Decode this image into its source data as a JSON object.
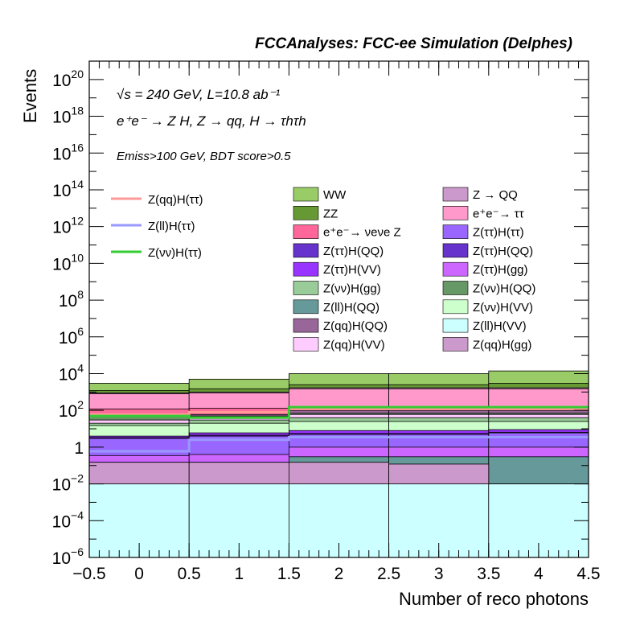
{
  "chart_data": {
    "type": "bar",
    "stacked": true,
    "title": "FCCAnalyses: FCC-ee Simulation (Delphes)",
    "annotations": {
      "energy_lumi": "√s = 240 GeV, L=10.8 ab⁻¹",
      "process": "e⁺e⁻ → Z H, Z → qq, H → τhτh",
      "cuts": "Emiss>100 GeV, BDT score>0.5"
    },
    "xlabel": "Number of reco photons",
    "ylabel": "Events",
    "xlim": [
      -0.5,
      4.5
    ],
    "ylim": [
      1e-06,
      1e+21
    ],
    "ylog": true,
    "x_ticks": [
      "−0.5",
      "0",
      "0.5",
      "1",
      "1.5",
      "2",
      "2.5",
      "3",
      "3.5",
      "4",
      "4.5"
    ],
    "y_ticks": [
      {
        "base": "10",
        "exp": "−6",
        "value": 1e-06
      },
      {
        "base": "10",
        "exp": "−4",
        "value": 0.0001
      },
      {
        "base": "10",
        "exp": "−2",
        "value": 0.01
      },
      {
        "base": "1",
        "exp": "",
        "value": 1
      },
      {
        "base": "10",
        "exp": "2",
        "value": 100.0
      },
      {
        "base": "10",
        "exp": "4",
        "value": 10000.0
      },
      {
        "base": "10",
        "exp": "6",
        "value": 1000000.0
      },
      {
        "base": "10",
        "exp": "8",
        "value": 100000000.0
      },
      {
        "base": "10",
        "exp": "10",
        "value": 10000000000.0
      },
      {
        "base": "10",
        "exp": "12",
        "value": 1000000000000.0
      },
      {
        "base": "10",
        "exp": "14",
        "value": 100000000000000.0
      },
      {
        "base": "10",
        "exp": "16",
        "value": 1e+16
      },
      {
        "base": "10",
        "exp": "18",
        "value": 1e+18
      },
      {
        "base": "10",
        "exp": "20",
        "value": 1e+20
      }
    ],
    "bin_edges": [
      -0.5,
      0.5,
      1.5,
      2.5,
      3.5,
      4.5
    ],
    "stack_cumulative_note": "Each stacked band's upper edge (cumulative total, events).",
    "stack": [
      {
        "name": "Z(ll)H(VV)",
        "color": "#ccffff",
        "top": [
          0.01,
          0.01,
          0.01,
          0.01,
          0.01
        ]
      },
      {
        "name": "Z(qq)H(gg)",
        "color": "#cc99cc",
        "top": [
          0.15,
          0.15,
          0.15,
          0.12,
          0.01
        ]
      },
      {
        "name": "Z(ll)H(QQ)",
        "color": "#669999",
        "top": [
          0.15,
          0.15,
          0.3,
          0.3,
          0.3
        ]
      },
      {
        "name": "Z(ττ)H(gg)",
        "color": "#cc66ff",
        "top": [
          0.35,
          0.4,
          1.0,
          1.0,
          1.0
        ]
      },
      {
        "name": "Z(ττ)H(ττ)",
        "color": "#9966ff",
        "top": [
          3,
          4,
          5,
          5,
          6
        ]
      },
      {
        "name": "Z(ττ)H(QQ)",
        "color": "#6633cc",
        "top": [
          3.3,
          4.5,
          5.5,
          5.5,
          6.5
        ]
      },
      {
        "name": "Z(ττ)H(VV)",
        "color": "#9933ff",
        "top": [
          4,
          6,
          8,
          8,
          9
        ]
      },
      {
        "name": "Z(νν)H(VV)",
        "color": "#ccffcc",
        "top": [
          15,
          20,
          25,
          25,
          25
        ]
      },
      {
        "name": "Z(νν)H(gg)",
        "color": "#99cc99",
        "top": [
          20,
          30,
          40,
          40,
          40
        ]
      },
      {
        "name": "Z(qq)H(VV)",
        "color": "#ffccff",
        "top": [
          30,
          40,
          60,
          60,
          60
        ]
      },
      {
        "name": "Z(νν)H(QQ)",
        "color": "#669966",
        "top": [
          50,
          50,
          70,
          70,
          70
        ]
      },
      {
        "name": "Z(qq)H(QQ)",
        "color": "#996699",
        "top": [
          60,
          60,
          100,
          100,
          100
        ]
      },
      {
        "name": "e⁺e⁻→ νeνe Z",
        "color": "#ff6699",
        "top": [
          120,
          130,
          150,
          150,
          150
        ]
      },
      {
        "name": "e⁺e⁻→ ττ",
        "color": "#ff99cc",
        "top": [
          800,
          900,
          1500,
          1500,
          1500
        ]
      },
      {
        "name": "Z → QQ",
        "color": "#cc99cc",
        "top": [
          900,
          1000,
          1700,
          1700,
          1700
        ]
      },
      {
        "name": "ZZ",
        "color": "#669933",
        "top": [
          1200,
          1500,
          2500,
          2500,
          3000
        ]
      },
      {
        "name": "WW",
        "color": "#99cc66",
        "top": [
          3000,
          5000,
          10000,
          10000,
          14000
        ]
      }
    ],
    "signals": [
      {
        "name": "Z(qq)H(ττ)",
        "color": "#ff9999",
        "values": [
          60,
          80,
          120,
          120,
          120
        ]
      },
      {
        "name": "Z(ll)H(ττ)",
        "color": "#9999ff",
        "values": [
          0.6,
          2.5,
          3.5,
          3.5,
          3.5
        ]
      },
      {
        "name": "Z(νν)H(ττ)",
        "color": "#33cc33",
        "values": [
          50,
          40,
          150,
          150,
          150
        ]
      }
    ],
    "legend_signals": [
      "Z(qq)H(ττ)",
      "Z(ll)H(ττ)",
      "Z(νν)H(ττ)"
    ],
    "legend_col1": [
      "WW",
      "ZZ",
      "e⁺e⁻→ νeνe Z",
      "Z(ττ)H(QQ)",
      "Z(ττ)H(VV)",
      "Z(νν)H(gg)",
      "Z(ll)H(QQ)",
      "Z(qq)H(QQ)",
      "Z(qq)H(VV)"
    ],
    "legend_col2": [
      "Z → QQ",
      "e⁺e⁻→ ττ",
      "Z(ττ)H(ττ)",
      "Z(ττ)H(QQ)",
      "Z(ττ)H(gg)",
      "Z(νν)H(QQ)",
      "Z(νν)H(VV)",
      "Z(ll)H(VV)",
      "Z(qq)H(gg)"
    ],
    "legend_placement": "top-inside",
    "grid": false
  }
}
